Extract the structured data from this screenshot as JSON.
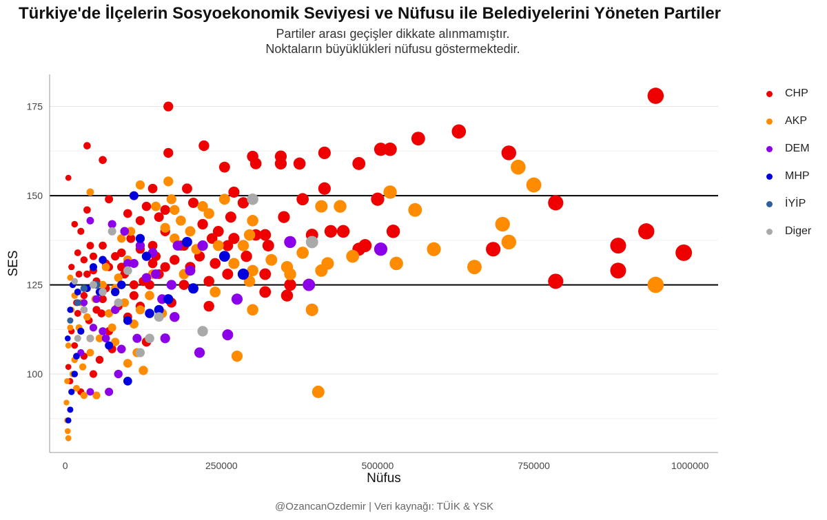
{
  "header": {
    "title": "Türkiye'de İlçelerin Sosyoekonomik Seviyesi ve Nüfusu ile Belediyelerini Yöneten Partiler",
    "subtitle_line1": "Partiler arası geçişler dikkate alınmamıştır.",
    "subtitle_line2": "Noktaların büyüklükleri nüfusu göstermektedir."
  },
  "caption": "@OzancanOzdemir | Veri kaynağı: TÜİK & YSK",
  "chart_data": {
    "type": "scatter",
    "xlabel": "Nüfus",
    "ylabel": "SES",
    "xlim": [
      -25000,
      1045000
    ],
    "ylim": [
      78,
      184
    ],
    "x_ticks": [
      0,
      250000,
      500000,
      750000,
      1000000
    ],
    "x_tick_labels": [
      "0",
      "250000",
      "500000",
      "750000",
      "1000000"
    ],
    "y_ticks": [
      100,
      125,
      150,
      175
    ],
    "y_tick_labels": [
      "100",
      "125",
      "150",
      "175"
    ],
    "reference_lines": [
      125,
      150
    ],
    "grid": true,
    "legend_position": "right",
    "size_encodes": "Nüfus",
    "series": [
      {
        "name": "CHP",
        "color": "#ee0000",
        "points": [
          [
            945000,
            178
          ],
          [
            165000,
            175
          ],
          [
            630000,
            168
          ],
          [
            565000,
            166
          ],
          [
            520000,
            163
          ],
          [
            505000,
            163
          ],
          [
            222000,
            164
          ],
          [
            710000,
            162
          ],
          [
            415000,
            162
          ],
          [
            300000,
            161
          ],
          [
            345000,
            161
          ],
          [
            470000,
            159
          ],
          [
            375000,
            159
          ],
          [
            305000,
            159
          ],
          [
            345000,
            159
          ],
          [
            255000,
            158
          ],
          [
            60000,
            160
          ],
          [
            35000,
            164
          ],
          [
            165000,
            162
          ],
          [
            415000,
            152
          ],
          [
            195000,
            152
          ],
          [
            140000,
            152
          ],
          [
            270000,
            151
          ],
          [
            500000,
            149
          ],
          [
            380000,
            149
          ],
          [
            285000,
            148
          ],
          [
            205000,
            148
          ],
          [
            785000,
            148
          ],
          [
            160000,
            146
          ],
          [
            120000,
            143
          ],
          [
            35000,
            146
          ],
          [
            265000,
            144
          ],
          [
            150000,
            144
          ],
          [
            350000,
            144
          ],
          [
            320000,
            139
          ],
          [
            220000,
            142
          ],
          [
            425000,
            140
          ],
          [
            445000,
            140
          ],
          [
            525000,
            140
          ],
          [
            305000,
            139
          ],
          [
            395000,
            139
          ],
          [
            245000,
            140
          ],
          [
            160000,
            140
          ],
          [
            930000,
            140
          ],
          [
            885000,
            136
          ],
          [
            685000,
            135
          ],
          [
            480000,
            136
          ],
          [
            470000,
            135
          ],
          [
            325000,
            136
          ],
          [
            270000,
            138
          ],
          [
            190000,
            136
          ],
          [
            215000,
            133
          ],
          [
            260000,
            136
          ],
          [
            140000,
            136
          ],
          [
            120000,
            135
          ],
          [
            90000,
            134
          ],
          [
            60000,
            136
          ],
          [
            40000,
            136
          ],
          [
            20000,
            134
          ],
          [
            10000,
            130
          ],
          [
            885000,
            129
          ],
          [
            990000,
            134
          ],
          [
            785000,
            126
          ],
          [
            320000,
            128
          ],
          [
            360000,
            125
          ],
          [
            260000,
            128
          ],
          [
            230000,
            126
          ],
          [
            190000,
            125
          ],
          [
            150000,
            128
          ],
          [
            110000,
            125
          ],
          [
            80000,
            123
          ],
          [
            60000,
            121
          ],
          [
            50000,
            118
          ],
          [
            30000,
            122
          ],
          [
            20000,
            117
          ],
          [
            10000,
            112
          ],
          [
            5000,
            102
          ],
          [
            15000,
            108
          ],
          [
            40000,
            110
          ],
          [
            70000,
            112
          ],
          [
            130000,
            109
          ],
          [
            120000,
            119
          ],
          [
            100000,
            116
          ],
          [
            170000,
            120
          ],
          [
            230000,
            119
          ],
          [
            320000,
            123
          ],
          [
            355000,
            122
          ],
          [
            395000,
            118
          ],
          [
            5000,
            155
          ],
          [
            25000,
            140
          ],
          [
            15000,
            142
          ],
          [
            30000,
            132
          ],
          [
            45000,
            129
          ],
          [
            70000,
            130
          ],
          [
            95000,
            128
          ],
          [
            140000,
            131
          ],
          [
            160000,
            130
          ],
          [
            200000,
            130
          ],
          [
            240000,
            131
          ],
          [
            290000,
            133
          ],
          [
            12000,
            125
          ],
          [
            22000,
            128
          ],
          [
            50000,
            126
          ],
          [
            65000,
            124
          ],
          [
            85000,
            119
          ],
          [
            110000,
            122
          ],
          [
            135000,
            125
          ],
          [
            8000,
            98
          ],
          [
            25000,
            95
          ],
          [
            45000,
            100
          ],
          [
            30000,
            105
          ],
          [
            55000,
            104
          ],
          [
            75000,
            107
          ],
          [
            18000,
            120
          ],
          [
            38000,
            115
          ],
          [
            58000,
            117
          ],
          [
            90000,
            130
          ],
          [
            105000,
            138
          ],
          [
            130000,
            147
          ],
          [
            70000,
            149
          ],
          [
            100000,
            145
          ],
          [
            185000,
            136
          ],
          [
            235000,
            138
          ],
          [
            175000,
            132
          ],
          [
            80000,
            133
          ],
          [
            45000,
            133
          ],
          [
            65000,
            131
          ],
          [
            35000,
            128
          ],
          [
            125000,
            126
          ],
          [
            145000,
            133
          ]
        ]
      },
      {
        "name": "AKP",
        "color": "#ff8c00",
        "points": [
          [
            945000,
            125
          ],
          [
            725000,
            158
          ],
          [
            750000,
            153
          ],
          [
            520000,
            151
          ],
          [
            560000,
            146
          ],
          [
            700000,
            142
          ],
          [
            710000,
            137
          ],
          [
            590000,
            135
          ],
          [
            655000,
            130
          ],
          [
            530000,
            131
          ],
          [
            460000,
            133
          ],
          [
            420000,
            131
          ],
          [
            410000,
            129
          ],
          [
            440000,
            147
          ],
          [
            410000,
            147
          ],
          [
            380000,
            134
          ],
          [
            355000,
            130
          ],
          [
            360000,
            128
          ],
          [
            390000,
            125
          ],
          [
            395000,
            118
          ],
          [
            405000,
            95
          ],
          [
            300000,
            118
          ],
          [
            295000,
            126
          ],
          [
            300000,
            129
          ],
          [
            330000,
            132
          ],
          [
            285000,
            136
          ],
          [
            295000,
            139
          ],
          [
            300000,
            143
          ],
          [
            270000,
            131
          ],
          [
            275000,
            105
          ],
          [
            240000,
            123
          ],
          [
            245000,
            136
          ],
          [
            220000,
            147
          ],
          [
            185000,
            143
          ],
          [
            165000,
            154
          ],
          [
            175000,
            146
          ],
          [
            145000,
            147
          ],
          [
            170000,
            149
          ],
          [
            120000,
            153
          ],
          [
            160000,
            141
          ],
          [
            175000,
            138
          ],
          [
            140000,
            128
          ],
          [
            120000,
            118
          ],
          [
            115000,
            106
          ],
          [
            125000,
            101
          ],
          [
            100000,
            132
          ],
          [
            80000,
            124
          ],
          [
            65000,
            130
          ],
          [
            40000,
            151
          ],
          [
            15000,
            122
          ],
          [
            10000,
            118
          ],
          [
            8000,
            113
          ],
          [
            5000,
            108
          ],
          [
            3000,
            98
          ],
          [
            2000,
            92
          ],
          [
            3000,
            87
          ],
          [
            4000,
            84
          ],
          [
            5000,
            82
          ],
          [
            12000,
            100
          ],
          [
            20000,
            110
          ],
          [
            25000,
            120
          ],
          [
            35000,
            116
          ],
          [
            45000,
            113
          ],
          [
            55000,
            110
          ],
          [
            70000,
            117
          ],
          [
            85000,
            127
          ],
          [
            95000,
            120
          ],
          [
            110000,
            114
          ],
          [
            135000,
            122
          ],
          [
            155000,
            117
          ],
          [
            30000,
            94
          ],
          [
            50000,
            94
          ],
          [
            70000,
            95
          ],
          [
            15000,
            104
          ],
          [
            40000,
            106
          ],
          [
            60000,
            125
          ],
          [
            80000,
            109
          ],
          [
            90000,
            138
          ],
          [
            105000,
            140
          ],
          [
            200000,
            140
          ],
          [
            210000,
            135
          ],
          [
            255000,
            149
          ],
          [
            230000,
            145
          ],
          [
            190000,
            128
          ],
          [
            18000,
            96
          ],
          [
            28000,
            102
          ],
          [
            8000,
            127
          ],
          [
            22000,
            113
          ],
          [
            48000,
            121
          ],
          [
            75000,
            113
          ],
          [
            100000,
            103
          ]
        ]
      },
      {
        "name": "DEM",
        "color": "#8b00e8",
        "points": [
          [
            505000,
            135
          ],
          [
            390000,
            125
          ],
          [
            360000,
            137
          ],
          [
            260000,
            111
          ],
          [
            275000,
            121
          ],
          [
            215000,
            106
          ],
          [
            200000,
            129
          ],
          [
            220000,
            136
          ],
          [
            175000,
            116
          ],
          [
            170000,
            125
          ],
          [
            155000,
            121
          ],
          [
            145000,
            128
          ],
          [
            130000,
            127
          ],
          [
            110000,
            131
          ],
          [
            100000,
            131
          ],
          [
            90000,
            107
          ],
          [
            80000,
            118
          ],
          [
            65000,
            110
          ],
          [
            60000,
            112
          ],
          [
            45000,
            113
          ],
          [
            70000,
            95
          ],
          [
            40000,
            95
          ],
          [
            75000,
            142
          ],
          [
            95000,
            140
          ],
          [
            40000,
            143
          ],
          [
            140000,
            134
          ],
          [
            120000,
            136
          ],
          [
            180000,
            136
          ],
          [
            30000,
            120
          ],
          [
            50000,
            121
          ],
          [
            25000,
            106
          ],
          [
            85000,
            100
          ],
          [
            115000,
            110
          ],
          [
            160000,
            110
          ]
        ]
      },
      {
        "name": "MHP",
        "color": "#0000dd",
        "points": [
          [
            285000,
            128
          ],
          [
            255000,
            133
          ],
          [
            205000,
            124
          ],
          [
            195000,
            137
          ],
          [
            165000,
            121
          ],
          [
            150000,
            118
          ],
          [
            135000,
            117
          ],
          [
            120000,
            138
          ],
          [
            110000,
            150
          ],
          [
            100000,
            98
          ],
          [
            100000,
            115
          ],
          [
            80000,
            123
          ],
          [
            70000,
            108
          ],
          [
            55000,
            123
          ],
          [
            35000,
            124
          ],
          [
            30000,
            118
          ],
          [
            25000,
            112
          ],
          [
            18000,
            105
          ],
          [
            15000,
            100
          ],
          [
            10000,
            95
          ],
          [
            8000,
            90
          ],
          [
            5000,
            87
          ],
          [
            12000,
            125
          ],
          [
            8000,
            118
          ],
          [
            4000,
            110
          ],
          [
            20000,
            123
          ],
          [
            45000,
            130
          ],
          [
            60000,
            132
          ],
          [
            90000,
            125
          ],
          [
            130000,
            133
          ]
        ]
      },
      {
        "name": "İYİP",
        "color": "#2f5f9e",
        "points": [
          [
            30000,
            124
          ],
          [
            50000,
            125
          ],
          [
            20000,
            120
          ],
          [
            8000,
            115
          ]
        ]
      },
      {
        "name": "Diger",
        "color": "#a9a9a9",
        "points": [
          [
            395000,
            137
          ],
          [
            300000,
            149
          ],
          [
            220000,
            112
          ],
          [
            150000,
            116
          ],
          [
            135000,
            110
          ],
          [
            120000,
            106
          ],
          [
            100000,
            129
          ],
          [
            75000,
            140
          ],
          [
            60000,
            123
          ],
          [
            45000,
            125
          ],
          [
            30000,
            118
          ],
          [
            20000,
            110
          ],
          [
            15000,
            126
          ],
          [
            40000,
            110
          ],
          [
            85000,
            120
          ]
        ]
      }
    ]
  }
}
